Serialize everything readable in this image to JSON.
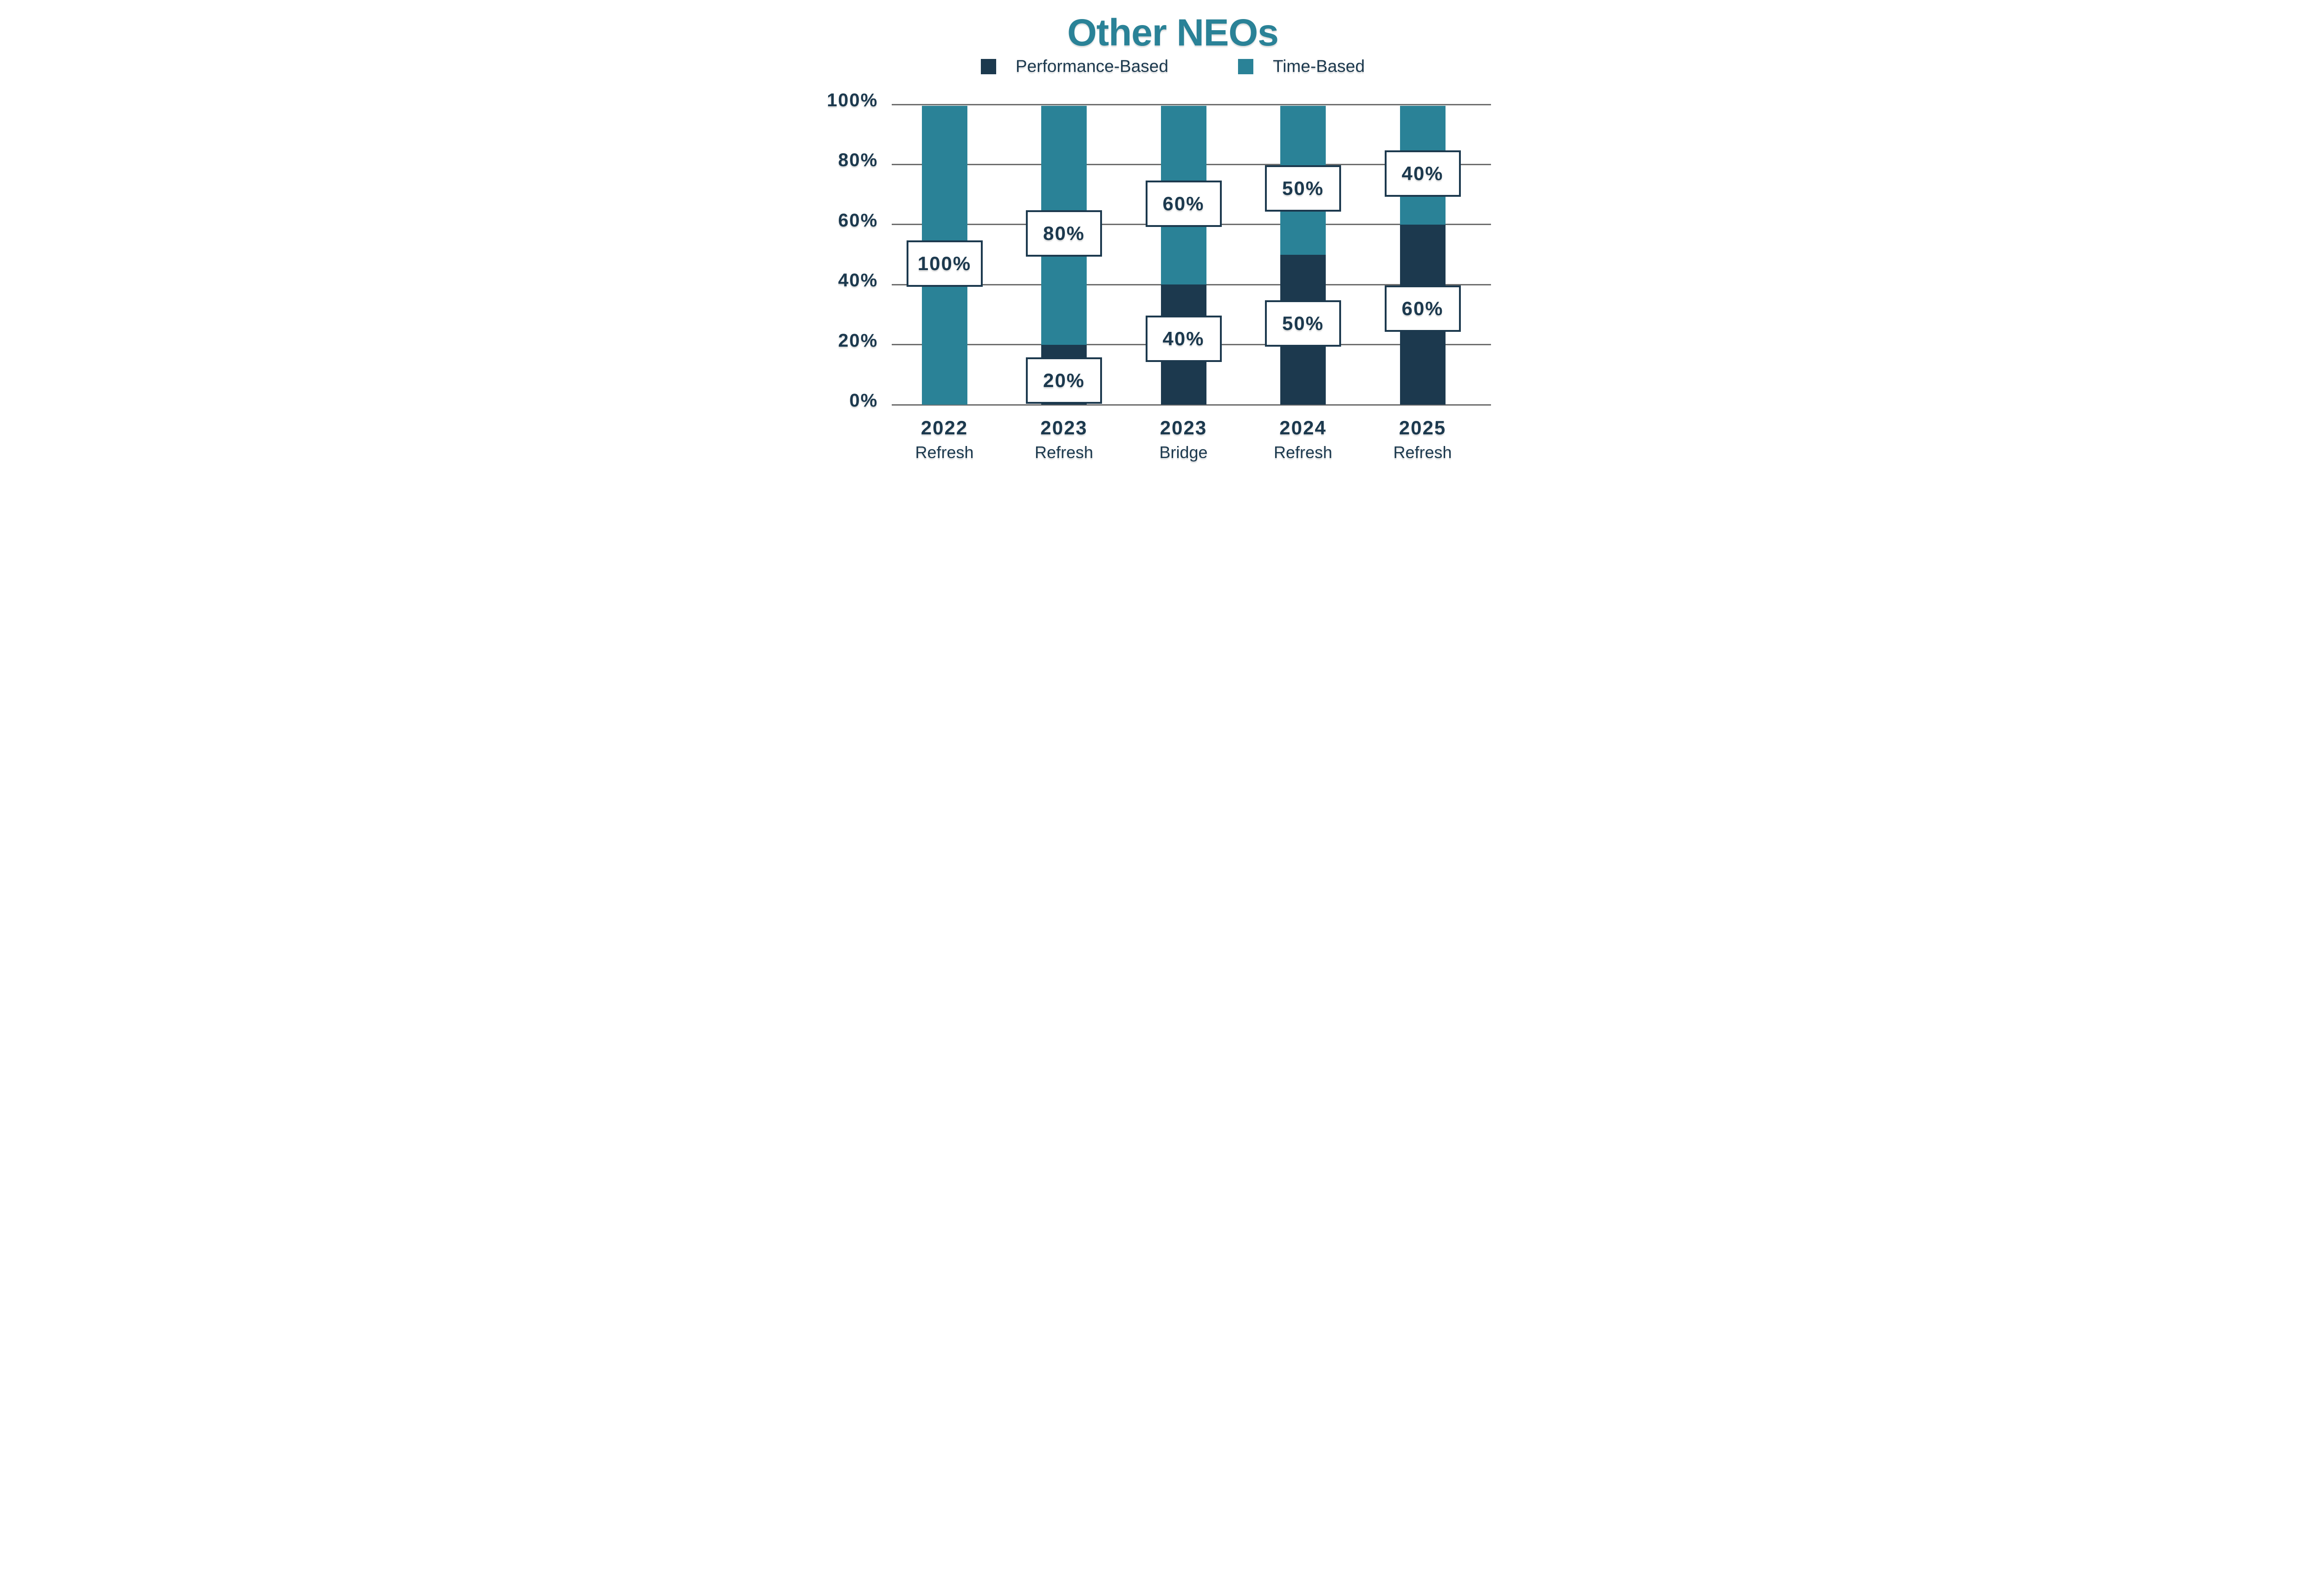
{
  "title": "Other NEOs",
  "colors": {
    "teal": "#2A8297",
    "navy": "#1C394E",
    "grid": "#6E6E6E",
    "text": "#1C394E",
    "label_box_bg": "#FFFFFF",
    "background": "#FFFFFF"
  },
  "legend": {
    "items": [
      {
        "label": "Performance-Based",
        "color_key": "navy"
      },
      {
        "label": "Time-Based",
        "color_key": "teal"
      }
    ]
  },
  "y_axis": {
    "ticks": [
      "100%",
      "80%",
      "60%",
      "40%",
      "20%",
      "0%"
    ],
    "min": 0,
    "max": 100,
    "step": 20
  },
  "x_axis": {
    "categories": [
      {
        "year": "2022",
        "type": "Refresh"
      },
      {
        "year": "2023",
        "type": "Refresh"
      },
      {
        "year": "2023",
        "type": "Bridge"
      },
      {
        "year": "2024",
        "type": "Refresh"
      },
      {
        "year": "2025",
        "type": "Refresh"
      }
    ]
  },
  "chart_data": {
    "type": "bar",
    "stacked": true,
    "title": "Other NEOs",
    "categories": [
      "2022 Refresh",
      "2023 Refresh",
      "2023 Bridge",
      "2024 Refresh",
      "2025 Refresh"
    ],
    "series": [
      {
        "name": "Performance-Based",
        "color": "#1C394E",
        "values": [
          0,
          20,
          40,
          50,
          60
        ]
      },
      {
        "name": "Time-Based",
        "color": "#2A8297",
        "values": [
          100,
          80,
          60,
          50,
          40
        ]
      }
    ],
    "ylim": [
      0,
      100
    ],
    "grid": true,
    "legend_position": "top",
    "data_labels": [
      {
        "bar": 0,
        "series": "Time-Based",
        "text": "100%",
        "center_pct": 47
      },
      {
        "bar": 1,
        "series": "Time-Based",
        "text": "80%",
        "center_pct": 57
      },
      {
        "bar": 1,
        "series": "Performance-Based",
        "text": "20%",
        "center_pct": 8
      },
      {
        "bar": 2,
        "series": "Time-Based",
        "text": "60%",
        "center_pct": 67
      },
      {
        "bar": 2,
        "series": "Performance-Based",
        "text": "40%",
        "center_pct": 22
      },
      {
        "bar": 3,
        "series": "Time-Based",
        "text": "50%",
        "center_pct": 72
      },
      {
        "bar": 3,
        "series": "Performance-Based",
        "text": "50%",
        "center_pct": 27
      },
      {
        "bar": 4,
        "series": "Time-Based",
        "text": "40%",
        "center_pct": 77
      },
      {
        "bar": 4,
        "series": "Performance-Based",
        "text": "60%",
        "center_pct": 32
      }
    ]
  }
}
